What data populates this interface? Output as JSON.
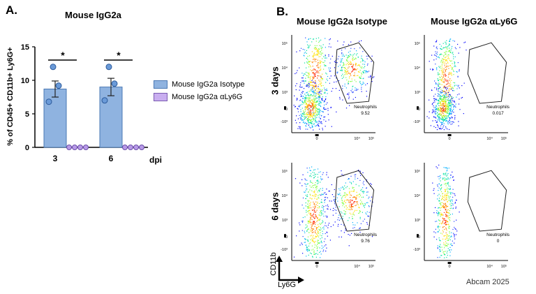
{
  "panel_a": {
    "letter": "A.",
    "title": "Mouse IgG2a",
    "ylabel": "% of CD45+ CD11b+ Ly6G+",
    "xlabel": "dpi",
    "significance": [
      "*",
      "*"
    ],
    "legend": [
      {
        "label": "Mouse IgG2a Isotype",
        "color": "#8fb3e0"
      },
      {
        "label": "Mouse IgG2a αLy6G",
        "color": "#c9aef0"
      }
    ]
  },
  "panel_b": {
    "letter": "B.",
    "col_titles": [
      "Mouse IgG2a Isotype",
      "Mouse IgG2a αLy6G"
    ],
    "row_labels": [
      "3 days",
      "6 days"
    ],
    "gate_name": "Neutrophils",
    "gate_values": [
      "9.52",
      "0.017",
      "9.76",
      "0"
    ],
    "axis_y": "CD11b",
    "axis_x": "Ly6G",
    "tick_labels_y": [
      "10⁵",
      "10⁴",
      "10³",
      "0",
      "-10³"
    ],
    "tick_labels_x": [
      "0",
      "10⁴",
      "10⁵"
    ]
  },
  "credit": "Abcam 2025",
  "chart_data": [
    {
      "type": "bar",
      "title": "Mouse IgG2a",
      "xlabel": "dpi",
      "ylabel": "% of CD45+ CD11b+ Ly6G+",
      "categories": [
        "3",
        "6"
      ],
      "ylim": [
        0,
        15
      ],
      "yticks": [
        0,
        5,
        10,
        15
      ],
      "series": [
        {
          "name": "Mouse IgG2a Isotype",
          "values": [
            8.7,
            9.0
          ],
          "errors": [
            1.2,
            1.3
          ],
          "points": [
            [
              12.0,
              9.2,
              6.8
            ],
            [
              12.0,
              9.5,
              7.0
            ]
          ]
        },
        {
          "name": "Mouse IgG2a αLy6G",
          "values": [
            0,
            0
          ],
          "errors": [
            0,
            0
          ],
          "points": [
            [
              0,
              0,
              0,
              0
            ],
            [
              0,
              0,
              0,
              0
            ]
          ]
        }
      ]
    },
    {
      "type": "scatter",
      "subtype": "flow-cytometry-plots",
      "xlabel": "Ly6G",
      "ylabel": "CD11b",
      "panels": [
        {
          "row": "3 days",
          "col": "Mouse IgG2a Isotype",
          "gate": "Neutrophils",
          "value": 9.52
        },
        {
          "row": "3 days",
          "col": "Mouse IgG2a αLy6G",
          "gate": "Neutrophils",
          "value": 0.017
        },
        {
          "row": "6 days",
          "col": "Mouse IgG2a Isotype",
          "gate": "Neutrophils",
          "value": 9.76
        },
        {
          "row": "6 days",
          "col": "Mouse IgG2a αLy6G",
          "gate": "Neutrophils",
          "value": 0
        }
      ]
    }
  ]
}
